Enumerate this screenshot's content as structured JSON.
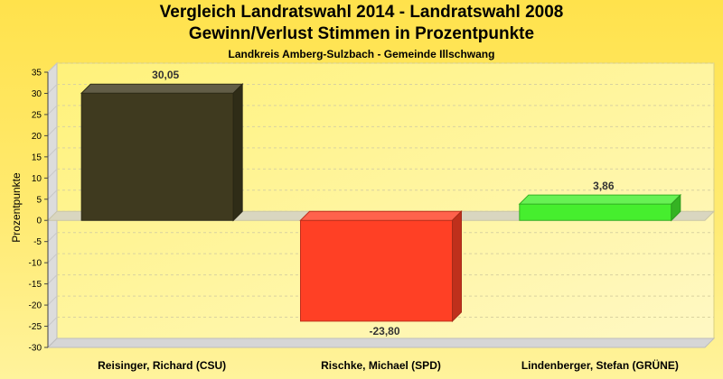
{
  "chart_data": {
    "type": "bar",
    "title": "Vergleich Landratswahl 2014 - Landratswahl 2008",
    "title_line2": "Gewinn/Verlust Stimmen in Prozentpunkte",
    "subtitle": "Landkreis Amberg-Sulzbach - Gemeinde Illschwang",
    "ylabel": "Prozentpunkte",
    "xlabel": "",
    "categories": [
      "Reisinger, Richard (CSU)",
      "Rischke, Michael (SPD)",
      "Lindenberger, Stefan (GRÜNE)"
    ],
    "values": [
      30.05,
      -23.8,
      3.86
    ],
    "data_labels": [
      "30,05",
      "-23,80",
      "3,86"
    ],
    "colors": [
      "#3f3a1f",
      "#ff4025",
      "#46ee2e"
    ],
    "ylim": [
      -30,
      35
    ],
    "yticks": [
      35,
      30,
      25,
      20,
      15,
      10,
      5,
      0,
      -5,
      -10,
      -15,
      -20,
      -25,
      -30
    ],
    "grid": true,
    "legend": "none"
  }
}
